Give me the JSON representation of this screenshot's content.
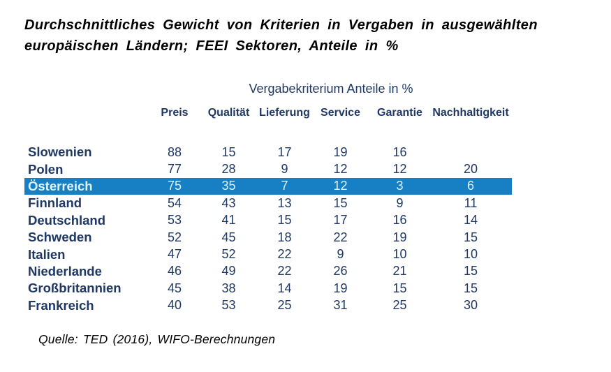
{
  "title": {
    "line1": "Durchschnittliches Gewicht von Kriterien in Vergaben in ausgewählten",
    "line2": "europäischen Ländern; FEEI Sektoren, Anteile in %"
  },
  "table": {
    "caption": "Vergabekriterium Anteile in %",
    "columns": [
      "Preis",
      "Qualität",
      "Lieferung",
      "Service",
      "Garantie",
      "Nachhaltigkeit"
    ],
    "rows": [
      {
        "country": "Slowenien",
        "v": [
          "88",
          "15",
          "17",
          "19",
          "16",
          ""
        ]
      },
      {
        "country": "Polen",
        "v": [
          "77",
          "28",
          "9",
          "12",
          "12",
          "20"
        ]
      },
      {
        "country": "Österreich",
        "v": [
          "75",
          "35",
          "7",
          "12",
          "3",
          "6"
        ],
        "highlighted": true
      },
      {
        "country": "Finnland",
        "v": [
          "54",
          "43",
          "13",
          "15",
          "9",
          "11"
        ]
      },
      {
        "country": "Deutschland",
        "v": [
          "53",
          "41",
          "15",
          "17",
          "16",
          "14"
        ]
      },
      {
        "country": "Schweden",
        "v": [
          "52",
          "45",
          "18",
          "22",
          "19",
          "15"
        ]
      },
      {
        "country": "Italien",
        "v": [
          "47",
          "52",
          "22",
          "9",
          "10",
          "10"
        ]
      },
      {
        "country": "Niederlande",
        "v": [
          "46",
          "49",
          "22",
          "26",
          "21",
          "15"
        ]
      },
      {
        "country": "Großbritannien",
        "v": [
          "45",
          "38",
          "14",
          "19",
          "15",
          "15"
        ]
      },
      {
        "country": "Frankreich",
        "v": [
          "40",
          "53",
          "25",
          "31",
          "25",
          "30"
        ]
      }
    ]
  },
  "source": "Quelle: TED (2016), WIFO-Berechnungen",
  "colors": {
    "highlight": "#1780C4",
    "highlight_text": "#DDF3FF",
    "navy": "#1F3864"
  },
  "chart_data": {
    "type": "table",
    "title": "Durchschnittliches Gewicht von Kriterien in Vergaben in ausgewählten europäischen Ländern; FEEI Sektoren, Anteile in %",
    "caption": "Vergabekriterium Anteile in %",
    "categories": [
      "Slowenien",
      "Polen",
      "Österreich",
      "Finnland",
      "Deutschland",
      "Schweden",
      "Italien",
      "Niederlande",
      "Großbritannien",
      "Frankreich"
    ],
    "series": [
      {
        "name": "Preis",
        "values": [
          88,
          77,
          75,
          54,
          53,
          52,
          47,
          46,
          45,
          40
        ]
      },
      {
        "name": "Qualität",
        "values": [
          15,
          28,
          35,
          43,
          41,
          45,
          52,
          49,
          38,
          53
        ]
      },
      {
        "name": "Lieferung",
        "values": [
          17,
          9,
          7,
          13,
          15,
          18,
          22,
          22,
          14,
          25
        ]
      },
      {
        "name": "Service",
        "values": [
          19,
          12,
          12,
          15,
          17,
          22,
          9,
          26,
          19,
          31
        ]
      },
      {
        "name": "Garantie",
        "values": [
          16,
          12,
          3,
          9,
          16,
          19,
          10,
          21,
          15,
          25
        ]
      },
      {
        "name": "Nachhaltigkeit",
        "values": [
          null,
          20,
          6,
          11,
          14,
          15,
          10,
          15,
          15,
          30
        ]
      }
    ],
    "highlighted_row": "Österreich",
    "source": "Quelle: TED (2016), WIFO-Berechnungen"
  }
}
